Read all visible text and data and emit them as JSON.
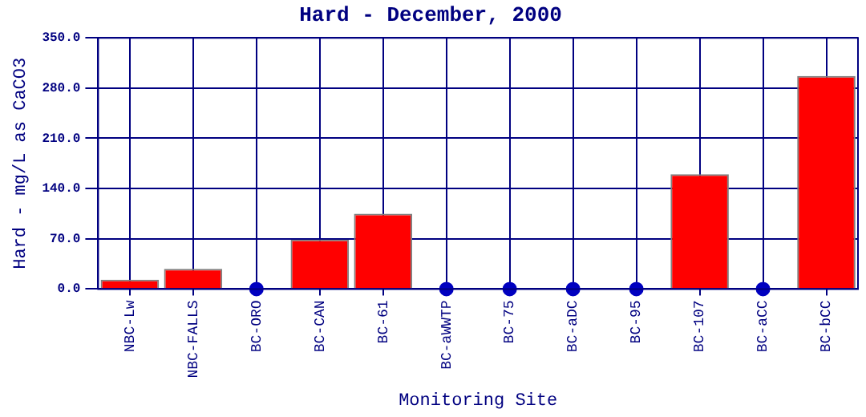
{
  "chart_data": {
    "type": "bar",
    "title": "Hard - December, 2000",
    "xlabel": "Monitoring Site",
    "ylabel": "Hard - mg/L as CaCO3",
    "categories": [
      "NBC-Lw",
      "NBC-FALLS",
      "BC-ORO",
      "BC-CAN",
      "BC-61",
      "BC-aWWTP",
      "BC-75",
      "BC-aDC",
      "BC-95",
      "BC-107",
      "BC-aCC",
      "BC-bCC"
    ],
    "series": [
      {
        "type": "bar",
        "color": "#ff0000",
        "values": [
          13,
          28,
          null,
          69,
          105,
          null,
          null,
          null,
          null,
          160,
          null,
          297
        ]
      },
      {
        "type": "scatter",
        "color": "#0000c0",
        "x": [
          "BC-ORO",
          "BC-aWWTP",
          "BC-75",
          "BC-aDC",
          "BC-95",
          "BC-aCC"
        ],
        "values": [
          0,
          0,
          0,
          0,
          0,
          0
        ]
      }
    ],
    "ylim": [
      0,
      350
    ],
    "yticks": [
      {
        "value": 0,
        "label": "0.0"
      },
      {
        "value": 70,
        "label": "70.0"
      },
      {
        "value": 140,
        "label": "140.0"
      },
      {
        "value": 210,
        "label": "210.0"
      },
      {
        "value": 280,
        "label": "280.0"
      },
      {
        "value": 350,
        "label": "350.0"
      }
    ],
    "grid": true,
    "marker": "circle"
  }
}
